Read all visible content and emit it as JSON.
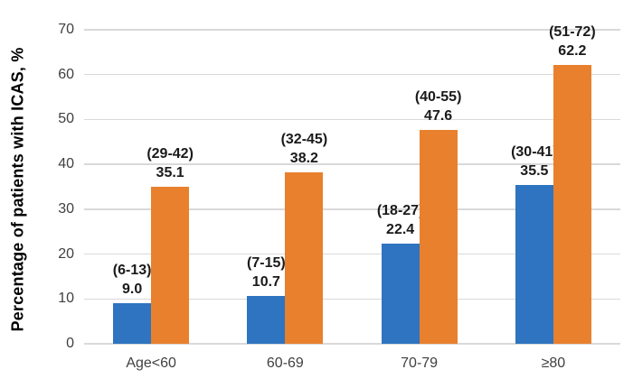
{
  "chart_data": {
    "type": "bar",
    "ylabel": "Percentage of patients with ICAS, %",
    "ylim": [
      0,
      70
    ],
    "yticks": [
      "0",
      "10",
      "20",
      "30",
      "40",
      "50",
      "60",
      "70"
    ],
    "categories": [
      "Age<60",
      "60-69",
      "70-79",
      "≥80"
    ],
    "series": [
      {
        "name": "blue-series",
        "color": "#2E74C0",
        "values": [
          9.0,
          10.7,
          22.4,
          35.5
        ],
        "value_labels": [
          "9.0",
          "10.7",
          "22.4",
          "35.5"
        ],
        "ci_labels": [
          "(6-13)",
          "(7-15)",
          "(18-27)",
          "(30-41)"
        ]
      },
      {
        "name": "orange-series",
        "color": "#E8802D",
        "values": [
          35.1,
          38.2,
          47.6,
          62.2
        ],
        "value_labels": [
          "35.1",
          "38.2",
          "47.6",
          "62.2"
        ],
        "ci_labels": [
          "(29-42)",
          "(32-45)",
          "(40-55)",
          "(51-72)"
        ]
      }
    ],
    "grid": true,
    "gridline_color": "#D9D9D9",
    "legend": "none",
    "background": "#FFFFFF"
  }
}
